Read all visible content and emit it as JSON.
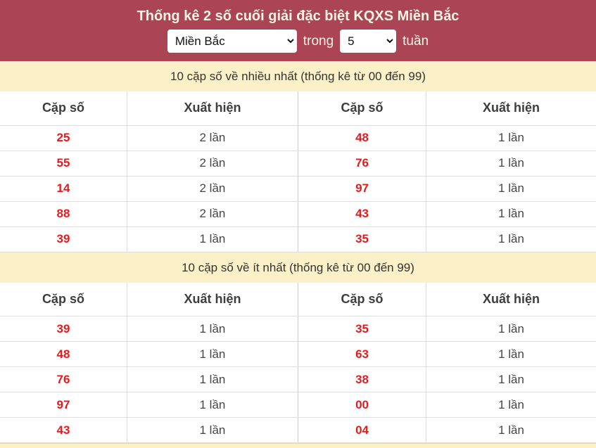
{
  "header": {
    "title": "Thống kê 2 số cuối giải đặc biệt KQXS Miền Bắc",
    "region_select": {
      "value": "Miền Bắc"
    },
    "between_label": "trong",
    "weeks_select": {
      "value": "5"
    },
    "after_label": "tuần"
  },
  "colors": {
    "header_background": "#ab4455",
    "section_bar_background": "#fcf0c8",
    "number_red": "#e8191d",
    "text_gray": "#444444",
    "border_gray": "#dddddd"
  },
  "sections": [
    {
      "heading": "10 cặp số về nhiều nhất (thống kê từ 00 đến 99)",
      "columns": [
        "Cặp số",
        "Xuất hiện",
        "Cặp số",
        "Xuất hiện"
      ],
      "rows": [
        [
          "25",
          "2 lần",
          "48",
          "1 lần"
        ],
        [
          "55",
          "2 lần",
          "76",
          "1 lần"
        ],
        [
          "14",
          "2 lần",
          "97",
          "1 lần"
        ],
        [
          "88",
          "2 lần",
          "43",
          "1 lần"
        ],
        [
          "39",
          "1 lần",
          "35",
          "1 lần"
        ]
      ]
    },
    {
      "heading": "10 cặp số về ít nhất (thống kê từ 00 đến 99)",
      "columns": [
        "Cặp số",
        "Xuất hiện",
        "Cặp số",
        "Xuất hiện"
      ],
      "rows": [
        [
          "39",
          "1 lần",
          "35",
          "1 lần"
        ],
        [
          "48",
          "1 lần",
          "63",
          "1 lần"
        ],
        [
          "76",
          "1 lần",
          "38",
          "1 lần"
        ],
        [
          "97",
          "1 lần",
          "00",
          "1 lần"
        ],
        [
          "43",
          "1 lần",
          "04",
          "1 lần"
        ]
      ]
    }
  ]
}
